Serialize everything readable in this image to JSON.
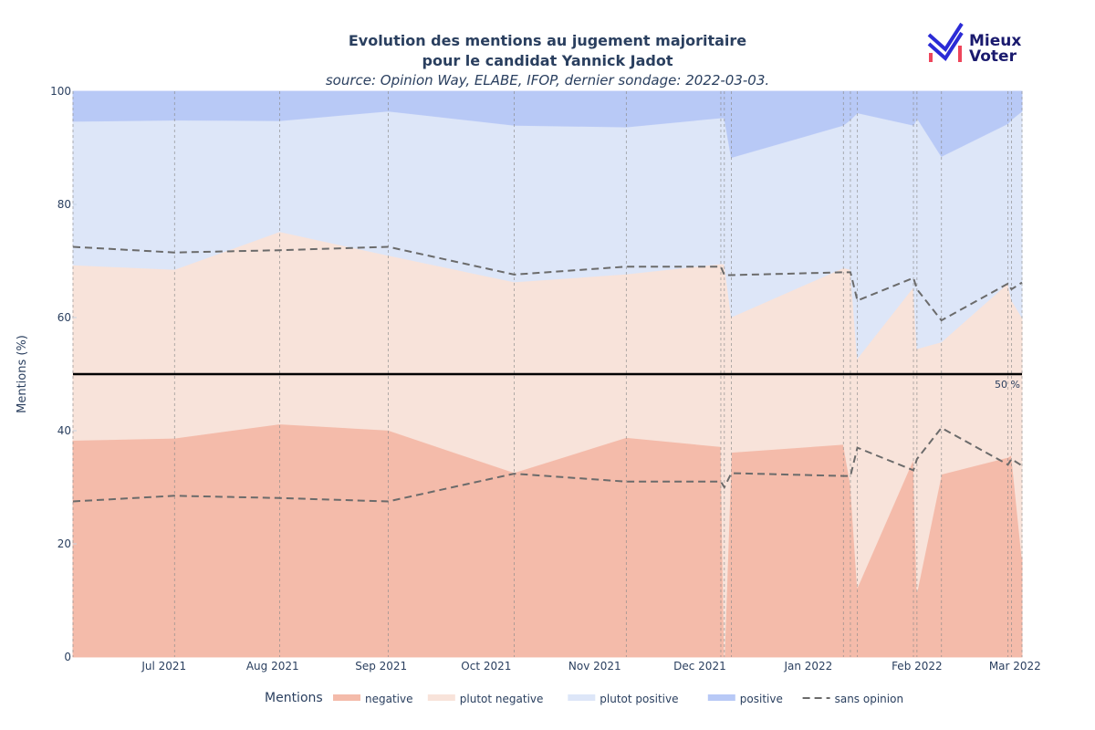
{
  "chart_data": {
    "type": "area",
    "title_line1": "Evolution des mentions au jugement majoritaire",
    "title_line2": "pour le candidat Yannick Jadot",
    "subtitle": "source: Opinion Way, ELABE, IFOP, dernier sondage: 2022-03-03.",
    "ylabel": "Mentions (%)",
    "ylim": [
      0,
      100
    ],
    "xlim": [
      "2021-06-05",
      "2022-03-03"
    ],
    "yticks": [
      0,
      20,
      40,
      60,
      80,
      100
    ],
    "xticks": [
      {
        "date": "2021-07-01",
        "label": "Jul 2021"
      },
      {
        "date": "2021-08-01",
        "label": "Aug 2021"
      },
      {
        "date": "2021-09-01",
        "label": "Sep 2021"
      },
      {
        "date": "2021-10-01",
        "label": "Oct 2021"
      },
      {
        "date": "2021-11-01",
        "label": "Nov 2021"
      },
      {
        "date": "2021-12-01",
        "label": "Dec 2021"
      },
      {
        "date": "2022-01-01",
        "label": "Jan 2022"
      },
      {
        "date": "2022-02-01",
        "label": "Feb 2022"
      },
      {
        "date": "2022-03-01",
        "label": "Mar 2022"
      }
    ],
    "poll_dates": [
      "2021-06-05",
      "2021-07-04",
      "2021-08-03",
      "2021-09-03",
      "2021-10-09",
      "2021-11-10",
      "2021-12-07",
      "2021-12-08",
      "2021-12-10",
      "2022-01-11",
      "2022-01-13",
      "2022-01-15",
      "2022-01-31",
      "2022-02-01",
      "2022-02-08",
      "2022-02-27",
      "2022-02-28",
      "2022-03-03"
    ],
    "series": [
      {
        "name": "negative",
        "color": "#f4bbaa",
        "values": [
          38.3,
          38.7,
          41.2,
          40.1,
          32.6,
          38.8,
          37.2,
          0,
          36.2,
          37.6,
          30.5,
          12.3,
          35,
          11.5,
          32.3,
          35.3,
          35.7,
          17.4
        ]
      },
      {
        "name": "plutot negative",
        "color": "#f8e3da",
        "values": [
          69.3,
          68.5,
          75.2,
          71.0,
          66.3,
          67.7,
          69.5,
          69.5,
          60.1,
          68.8,
          68.5,
          52.8,
          65.4,
          54.5,
          55.7,
          66.1,
          63.1,
          60.0
        ]
      },
      {
        "name": "plutot positive",
        "color": "#dde6f8",
        "values": [
          94.7,
          94.9,
          94.8,
          96.5,
          94.0,
          93.7,
          95.3,
          95.3,
          88.3,
          94.0,
          95.0,
          96.2,
          94.0,
          95.3,
          88.5,
          94.3,
          95.0,
          96.5
        ]
      },
      {
        "name": "positive",
        "color": "#b8c9f6",
        "values": [
          100,
          100,
          100,
          100,
          100,
          100,
          100,
          100,
          100,
          100,
          100,
          100,
          100,
          100,
          100,
          100,
          100,
          100
        ]
      }
    ],
    "sans_opinion": {
      "name": "sans opinion",
      "color": "#6b6b6b",
      "lower": [
        27.5,
        28.5,
        28.1,
        27.5,
        32.4,
        31.0,
        31.0,
        30.0,
        32.5,
        32.0,
        32.0,
        37.0,
        33.0,
        35.0,
        40.5,
        34.0,
        35.0,
        33.8
      ],
      "upper": [
        72.5,
        71.5,
        71.9,
        72.5,
        67.6,
        69.0,
        69.0,
        67.5,
        67.5,
        68.0,
        68.0,
        63.0,
        67.0,
        65.0,
        59.5,
        66.0,
        65.0,
        66.2
      ]
    },
    "reference_line": {
      "value": 50,
      "label": "50 %"
    },
    "legend": {
      "title": "Mentions",
      "placement": "bottom"
    }
  },
  "logo": {
    "line1": "Mieux",
    "line2": "Voter"
  }
}
